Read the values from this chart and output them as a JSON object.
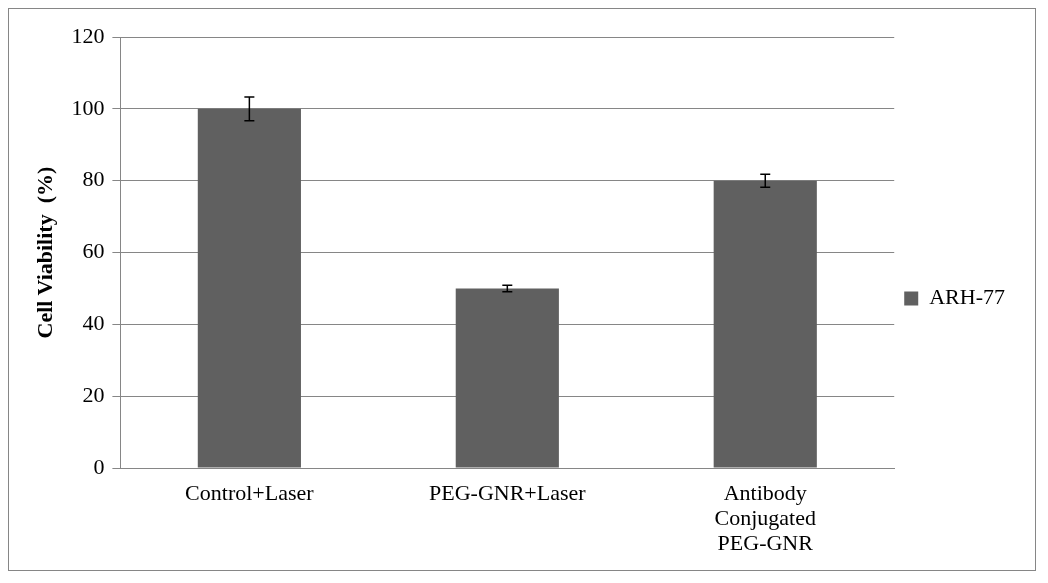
{
  "chart_data": {
    "type": "bar",
    "categories": [
      "Control+Laser",
      "PEG-GNR+Laser",
      "Antibody Conjugated PEG-GNR"
    ],
    "series": [
      {
        "name": "ARH-77",
        "color": "#606060",
        "values": [
          100,
          50,
          80
        ],
        "errors": [
          3.3,
          0.9,
          1.8
        ]
      }
    ],
    "ylabel": "Cell Viability  (%)",
    "ylim": [
      0,
      120
    ],
    "yticks": [
      0,
      20,
      40,
      60,
      80,
      100,
      120
    ],
    "grid": "y",
    "legend": "right"
  }
}
